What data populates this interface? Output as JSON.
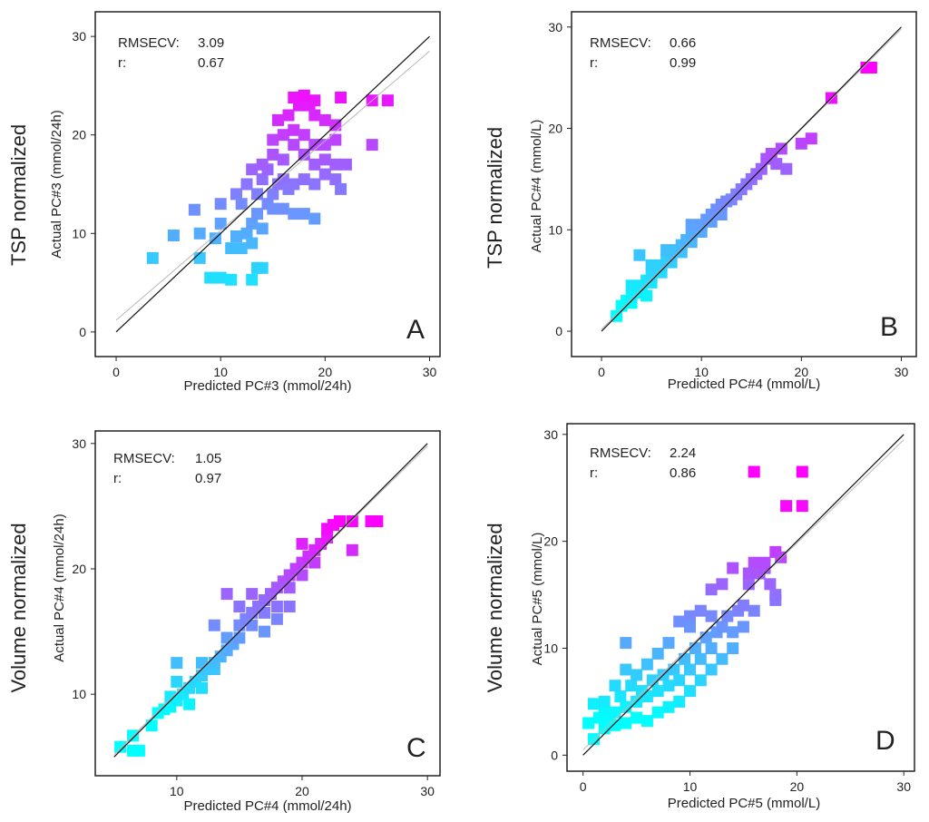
{
  "row_labels": [
    "TSP normalized",
    "TSP normalized",
    "Volume normalized",
    "Volume normalized"
  ],
  "chart_data": [
    {
      "type": "scatter",
      "panel": "A",
      "row_label": "TSP normalized",
      "xlabel": "Predicted PC#3 (mmol/24h)",
      "ylabel": "Actual PC#3 (mmol/24h)",
      "xlim": [
        -2,
        31
      ],
      "ylim": [
        -2.5,
        32.5
      ],
      "xticks": [
        0,
        10,
        20,
        30
      ],
      "yticks": [
        0,
        10,
        20,
        30
      ],
      "stats": {
        "rmsecv_label": "RMSECV:",
        "rmsecv": "3.09",
        "r_label": "r:",
        "r": "0.67"
      },
      "identity_line": [
        [
          0,
          0
        ],
        [
          30,
          30
        ]
      ],
      "fit_line": [
        [
          0,
          1.2
        ],
        [
          30,
          28.5
        ]
      ],
      "colormap": [
        "#00ffff",
        "#ff00ff"
      ],
      "points": [
        [
          3.5,
          7.5
        ],
        [
          5.5,
          9.8
        ],
        [
          7.5,
          12.4
        ],
        [
          8,
          10
        ],
        [
          8,
          7.5
        ],
        [
          9,
          5.5
        ],
        [
          10,
          5.5
        ],
        [
          11,
          5.3
        ],
        [
          13,
          5.3
        ],
        [
          13.5,
          6.5
        ],
        [
          14,
          6.5
        ],
        [
          9.5,
          9.5
        ],
        [
          10,
          11
        ],
        [
          10,
          13
        ],
        [
          11,
          8.5
        ],
        [
          11.5,
          9.7
        ],
        [
          12,
          8.5
        ],
        [
          12.5,
          10
        ],
        [
          13,
          11
        ],
        [
          13,
          9
        ],
        [
          13.5,
          12
        ],
        [
          14,
          10.5
        ],
        [
          14.5,
          13
        ],
        [
          11.5,
          14
        ],
        [
          12.5,
          15
        ],
        [
          12,
          13
        ],
        [
          13.5,
          14
        ],
        [
          14,
          15.5
        ],
        [
          14.5,
          16.5
        ],
        [
          15,
          14
        ],
        [
          15.5,
          15
        ],
        [
          16,
          15.5
        ],
        [
          16.5,
          14.5
        ],
        [
          17,
          15
        ],
        [
          18,
          15.5
        ],
        [
          19,
          15
        ],
        [
          20,
          16
        ],
        [
          21,
          15.5
        ],
        [
          15,
          12.5
        ],
        [
          16,
          12.5
        ],
        [
          17,
          12
        ],
        [
          18,
          12
        ],
        [
          19,
          11.5
        ],
        [
          14,
          17
        ],
        [
          15,
          18
        ],
        [
          16,
          17.5
        ],
        [
          17,
          19
        ],
        [
          18,
          18
        ],
        [
          19,
          17
        ],
        [
          20,
          17.5
        ],
        [
          21,
          17
        ],
        [
          15,
          19.5
        ],
        [
          16,
          20
        ],
        [
          17,
          20.5
        ],
        [
          18,
          20
        ],
        [
          19,
          19
        ],
        [
          20,
          19
        ],
        [
          21,
          19.5
        ],
        [
          15.5,
          21.5
        ],
        [
          16.5,
          22
        ],
        [
          17.5,
          23
        ],
        [
          18.5,
          23
        ],
        [
          19,
          22
        ],
        [
          20,
          21.5
        ],
        [
          21,
          21
        ],
        [
          17,
          23.8
        ],
        [
          18,
          24
        ],
        [
          19,
          23.5
        ],
        [
          21.5,
          23.8
        ],
        [
          24.5,
          23.5
        ],
        [
          26,
          23.5
        ],
        [
          24.5,
          19
        ],
        [
          22,
          17
        ],
        [
          21.5,
          14.5
        ],
        [
          13,
          16.5
        ]
      ]
    },
    {
      "type": "scatter",
      "panel": "B",
      "row_label": "TSP normalized",
      "xlabel": "Predicted PC#4 (mmol/L)",
      "ylabel": "Actual PC#4 (mmol/L)",
      "xlim": [
        -3,
        31.5
      ],
      "ylim": [
        -2.5,
        31.5
      ],
      "xticks": [
        0,
        10,
        20,
        30
      ],
      "yticks": [
        0,
        10,
        20,
        30
      ],
      "stats": {
        "rmsecv_label": "RMSECV:",
        "rmsecv": "0.66",
        "r_label": "r:",
        "r": "0.99"
      },
      "identity_line": [
        [
          0,
          0
        ],
        [
          30,
          30
        ]
      ],
      "fit_line": [
        [
          0,
          0.2
        ],
        [
          30,
          29.8
        ]
      ],
      "colormap": [
        "#00ffff",
        "#ff00ff"
      ],
      "points": [
        [
          1.5,
          1.5
        ],
        [
          2,
          2.5
        ],
        [
          2.5,
          3
        ],
        [
          3,
          2.8
        ],
        [
          3,
          3.5
        ],
        [
          3.5,
          4
        ],
        [
          4,
          3.8
        ],
        [
          4,
          4.5
        ],
        [
          4.5,
          5
        ],
        [
          5,
          4.8
        ],
        [
          5,
          5.5
        ],
        [
          5.5,
          6
        ],
        [
          6,
          5.8
        ],
        [
          6,
          6.5
        ],
        [
          6.5,
          7
        ],
        [
          7,
          6.8
        ],
        [
          7,
          7.5
        ],
        [
          7.5,
          8
        ],
        [
          8,
          7.8
        ],
        [
          8,
          8.5
        ],
        [
          8.5,
          9
        ],
        [
          9,
          8.8
        ],
        [
          9,
          9.5
        ],
        [
          9.5,
          10
        ],
        [
          10,
          9.8
        ],
        [
          10,
          10.5
        ],
        [
          10.5,
          11
        ],
        [
          11,
          10.8
        ],
        [
          11,
          11.5
        ],
        [
          11.5,
          12
        ],
        [
          12,
          11.5
        ],
        [
          12,
          12.5
        ],
        [
          12.5,
          12.8
        ],
        [
          13,
          13
        ],
        [
          13.5,
          13.5
        ],
        [
          14,
          14
        ],
        [
          14.5,
          14.5
        ],
        [
          15,
          15
        ],
        [
          15.5,
          15.5
        ],
        [
          16,
          16
        ],
        [
          16.5,
          17
        ],
        [
          17,
          17.5
        ],
        [
          17.5,
          16.5
        ],
        [
          18,
          18
        ],
        [
          18.5,
          16
        ],
        [
          20,
          18.5
        ],
        [
          21,
          19
        ],
        [
          23,
          23
        ],
        [
          26.5,
          26
        ],
        [
          27,
          26
        ],
        [
          3.8,
          7.5
        ],
        [
          5,
          6.5
        ],
        [
          6.5,
          8
        ],
        [
          9,
          10.5
        ],
        [
          3,
          4.5
        ],
        [
          4.5,
          3.5
        ]
      ]
    },
    {
      "type": "scatter",
      "panel": "C",
      "row_label": "Volume normalized",
      "xlabel": "Predicted PC#4 (mmol/24h)",
      "ylabel": "Actual PC#4 (mmol/24h)",
      "xlim": [
        3.5,
        31
      ],
      "ylim": [
        3.5,
        31
      ],
      "xticks": [
        10,
        20,
        30
      ],
      "yticks": [
        10,
        20,
        30
      ],
      "stats": {
        "rmsecv_label": "RMSECV:",
        "rmsecv": "1.05",
        "r_label": "r:",
        "r": "0.97"
      },
      "identity_line": [
        [
          5,
          5
        ],
        [
          30,
          30
        ]
      ],
      "fit_line": [
        [
          5,
          5.2
        ],
        [
          30,
          29.8
        ]
      ],
      "colormap": [
        "#00ffff",
        "#ff00ff"
      ],
      "points": [
        [
          5.5,
          5.8
        ],
        [
          6.5,
          5.5
        ],
        [
          7,
          5.5
        ],
        [
          6.5,
          6.7
        ],
        [
          8,
          7.5
        ],
        [
          8.5,
          8.5
        ],
        [
          9,
          8.8
        ],
        [
          9.5,
          9
        ],
        [
          9.5,
          9.8
        ],
        [
          10,
          9.5
        ],
        [
          10.5,
          10
        ],
        [
          11,
          9.2
        ],
        [
          11,
          10.5
        ],
        [
          11.5,
          11
        ],
        [
          12,
          10.5
        ],
        [
          12,
          11.5
        ],
        [
          12.5,
          12
        ],
        [
          13,
          12
        ],
        [
          13,
          12.5
        ],
        [
          13.5,
          13
        ],
        [
          14,
          13.5
        ],
        [
          14,
          14.5
        ],
        [
          14.5,
          14
        ],
        [
          15,
          14.5
        ],
        [
          15,
          15.5
        ],
        [
          15.5,
          16
        ],
        [
          16,
          15.5
        ],
        [
          16,
          16.5
        ],
        [
          16.5,
          17
        ],
        [
          17,
          16.5
        ],
        [
          17,
          17.5
        ],
        [
          17.5,
          18
        ],
        [
          18,
          17
        ],
        [
          18,
          18.5
        ],
        [
          18.5,
          19
        ],
        [
          19,
          18.5
        ],
        [
          19,
          19.5
        ],
        [
          19.5,
          20
        ],
        [
          20,
          19.5
        ],
        [
          20,
          20.5
        ],
        [
          20.5,
          21
        ],
        [
          21,
          20.5
        ],
        [
          21,
          21.5
        ],
        [
          21.5,
          22
        ],
        [
          22,
          22.5
        ],
        [
          22,
          23.2
        ],
        [
          22.5,
          23.5
        ],
        [
          23,
          23.8
        ],
        [
          24,
          23.8
        ],
        [
          25.5,
          23.8
        ],
        [
          26,
          23.8
        ],
        [
          24,
          21.5
        ],
        [
          20,
          22
        ],
        [
          14,
          18
        ],
        [
          10,
          12.5
        ],
        [
          10,
          11
        ],
        [
          12,
          12.5
        ],
        [
          16,
          18
        ],
        [
          17,
          15
        ],
        [
          18,
          16
        ],
        [
          19,
          17
        ],
        [
          15,
          17
        ],
        [
          13,
          15.5
        ]
      ]
    },
    {
      "type": "scatter",
      "panel": "D",
      "row_label": "Volume normalized",
      "xlabel": "Predicted PC#5 (mmol/L)",
      "ylabel": "Actual PC#5 (mmol/L)",
      "xlim": [
        -1.5,
        31
      ],
      "ylim": [
        -1.5,
        31
      ],
      "xticks": [
        0,
        10,
        20,
        30
      ],
      "yticks": [
        0,
        10,
        20,
        30
      ],
      "stats": {
        "rmsecv_label": "RMSECV:",
        "rmsecv": "2.24",
        "r_label": "r:",
        "r": "0.86"
      },
      "identity_line": [
        [
          0,
          0
        ],
        [
          30,
          30
        ]
      ],
      "fit_line": [
        [
          0,
          0.5
        ],
        [
          30,
          29.5
        ]
      ],
      "colormap": [
        "#00ffff",
        "#ff00ff"
      ],
      "points": [
        [
          0.5,
          3
        ],
        [
          1,
          1.5
        ],
        [
          1,
          4.8
        ],
        [
          1.5,
          3.5
        ],
        [
          2,
          2.5
        ],
        [
          2,
          4
        ],
        [
          2.5,
          3
        ],
        [
          3,
          2.8
        ],
        [
          3,
          4
        ],
        [
          3.5,
          5.5
        ],
        [
          4,
          3
        ],
        [
          4,
          4.5
        ],
        [
          4.5,
          6.5
        ],
        [
          5,
          3.5
        ],
        [
          5,
          5
        ],
        [
          5.5,
          6
        ],
        [
          6,
          3.2
        ],
        [
          6,
          5.5
        ],
        [
          6.5,
          7
        ],
        [
          7,
          4
        ],
        [
          7,
          6
        ],
        [
          7.5,
          7.5
        ],
        [
          8,
          4.5
        ],
        [
          8,
          6.5
        ],
        [
          8.5,
          8
        ],
        [
          9,
          5
        ],
        [
          9,
          7
        ],
        [
          9.5,
          9
        ],
        [
          10,
          6
        ],
        [
          10,
          8
        ],
        [
          10.5,
          10
        ],
        [
          11,
          7
        ],
        [
          11,
          9
        ],
        [
          11.5,
          11
        ],
        [
          12,
          8
        ],
        [
          12,
          10
        ],
        [
          12.5,
          11.5
        ],
        [
          13,
          9
        ],
        [
          13,
          12
        ],
        [
          13.5,
          13
        ],
        [
          14,
          10
        ],
        [
          14,
          11.5
        ],
        [
          14.5,
          13.5
        ],
        [
          15,
          12
        ],
        [
          15,
          14
        ],
        [
          15.5,
          16
        ],
        [
          16,
          13.5
        ],
        [
          16.5,
          17
        ],
        [
          17,
          17.5
        ],
        [
          17.5,
          16
        ],
        [
          18,
          19
        ],
        [
          18.5,
          18.5
        ],
        [
          16,
          18
        ],
        [
          17,
          18
        ],
        [
          14,
          17.5
        ],
        [
          13,
          16
        ],
        [
          12,
          15.5
        ],
        [
          11,
          13.5
        ],
        [
          10,
          13
        ],
        [
          9,
          12.5
        ],
        [
          8,
          10.5
        ],
        [
          7,
          9.5
        ],
        [
          6,
          8.5
        ],
        [
          5,
          7.5
        ],
        [
          4,
          8
        ],
        [
          4,
          10.5
        ],
        [
          3,
          6.5
        ],
        [
          2,
          5
        ],
        [
          16,
          26.5
        ],
        [
          20.5,
          26.5
        ],
        [
          19,
          23.3
        ],
        [
          20.5,
          23.3
        ],
        [
          18,
          14.5
        ],
        [
          18,
          15
        ],
        [
          15.5,
          17
        ],
        [
          10,
          12
        ],
        [
          12,
          13
        ]
      ]
    }
  ]
}
